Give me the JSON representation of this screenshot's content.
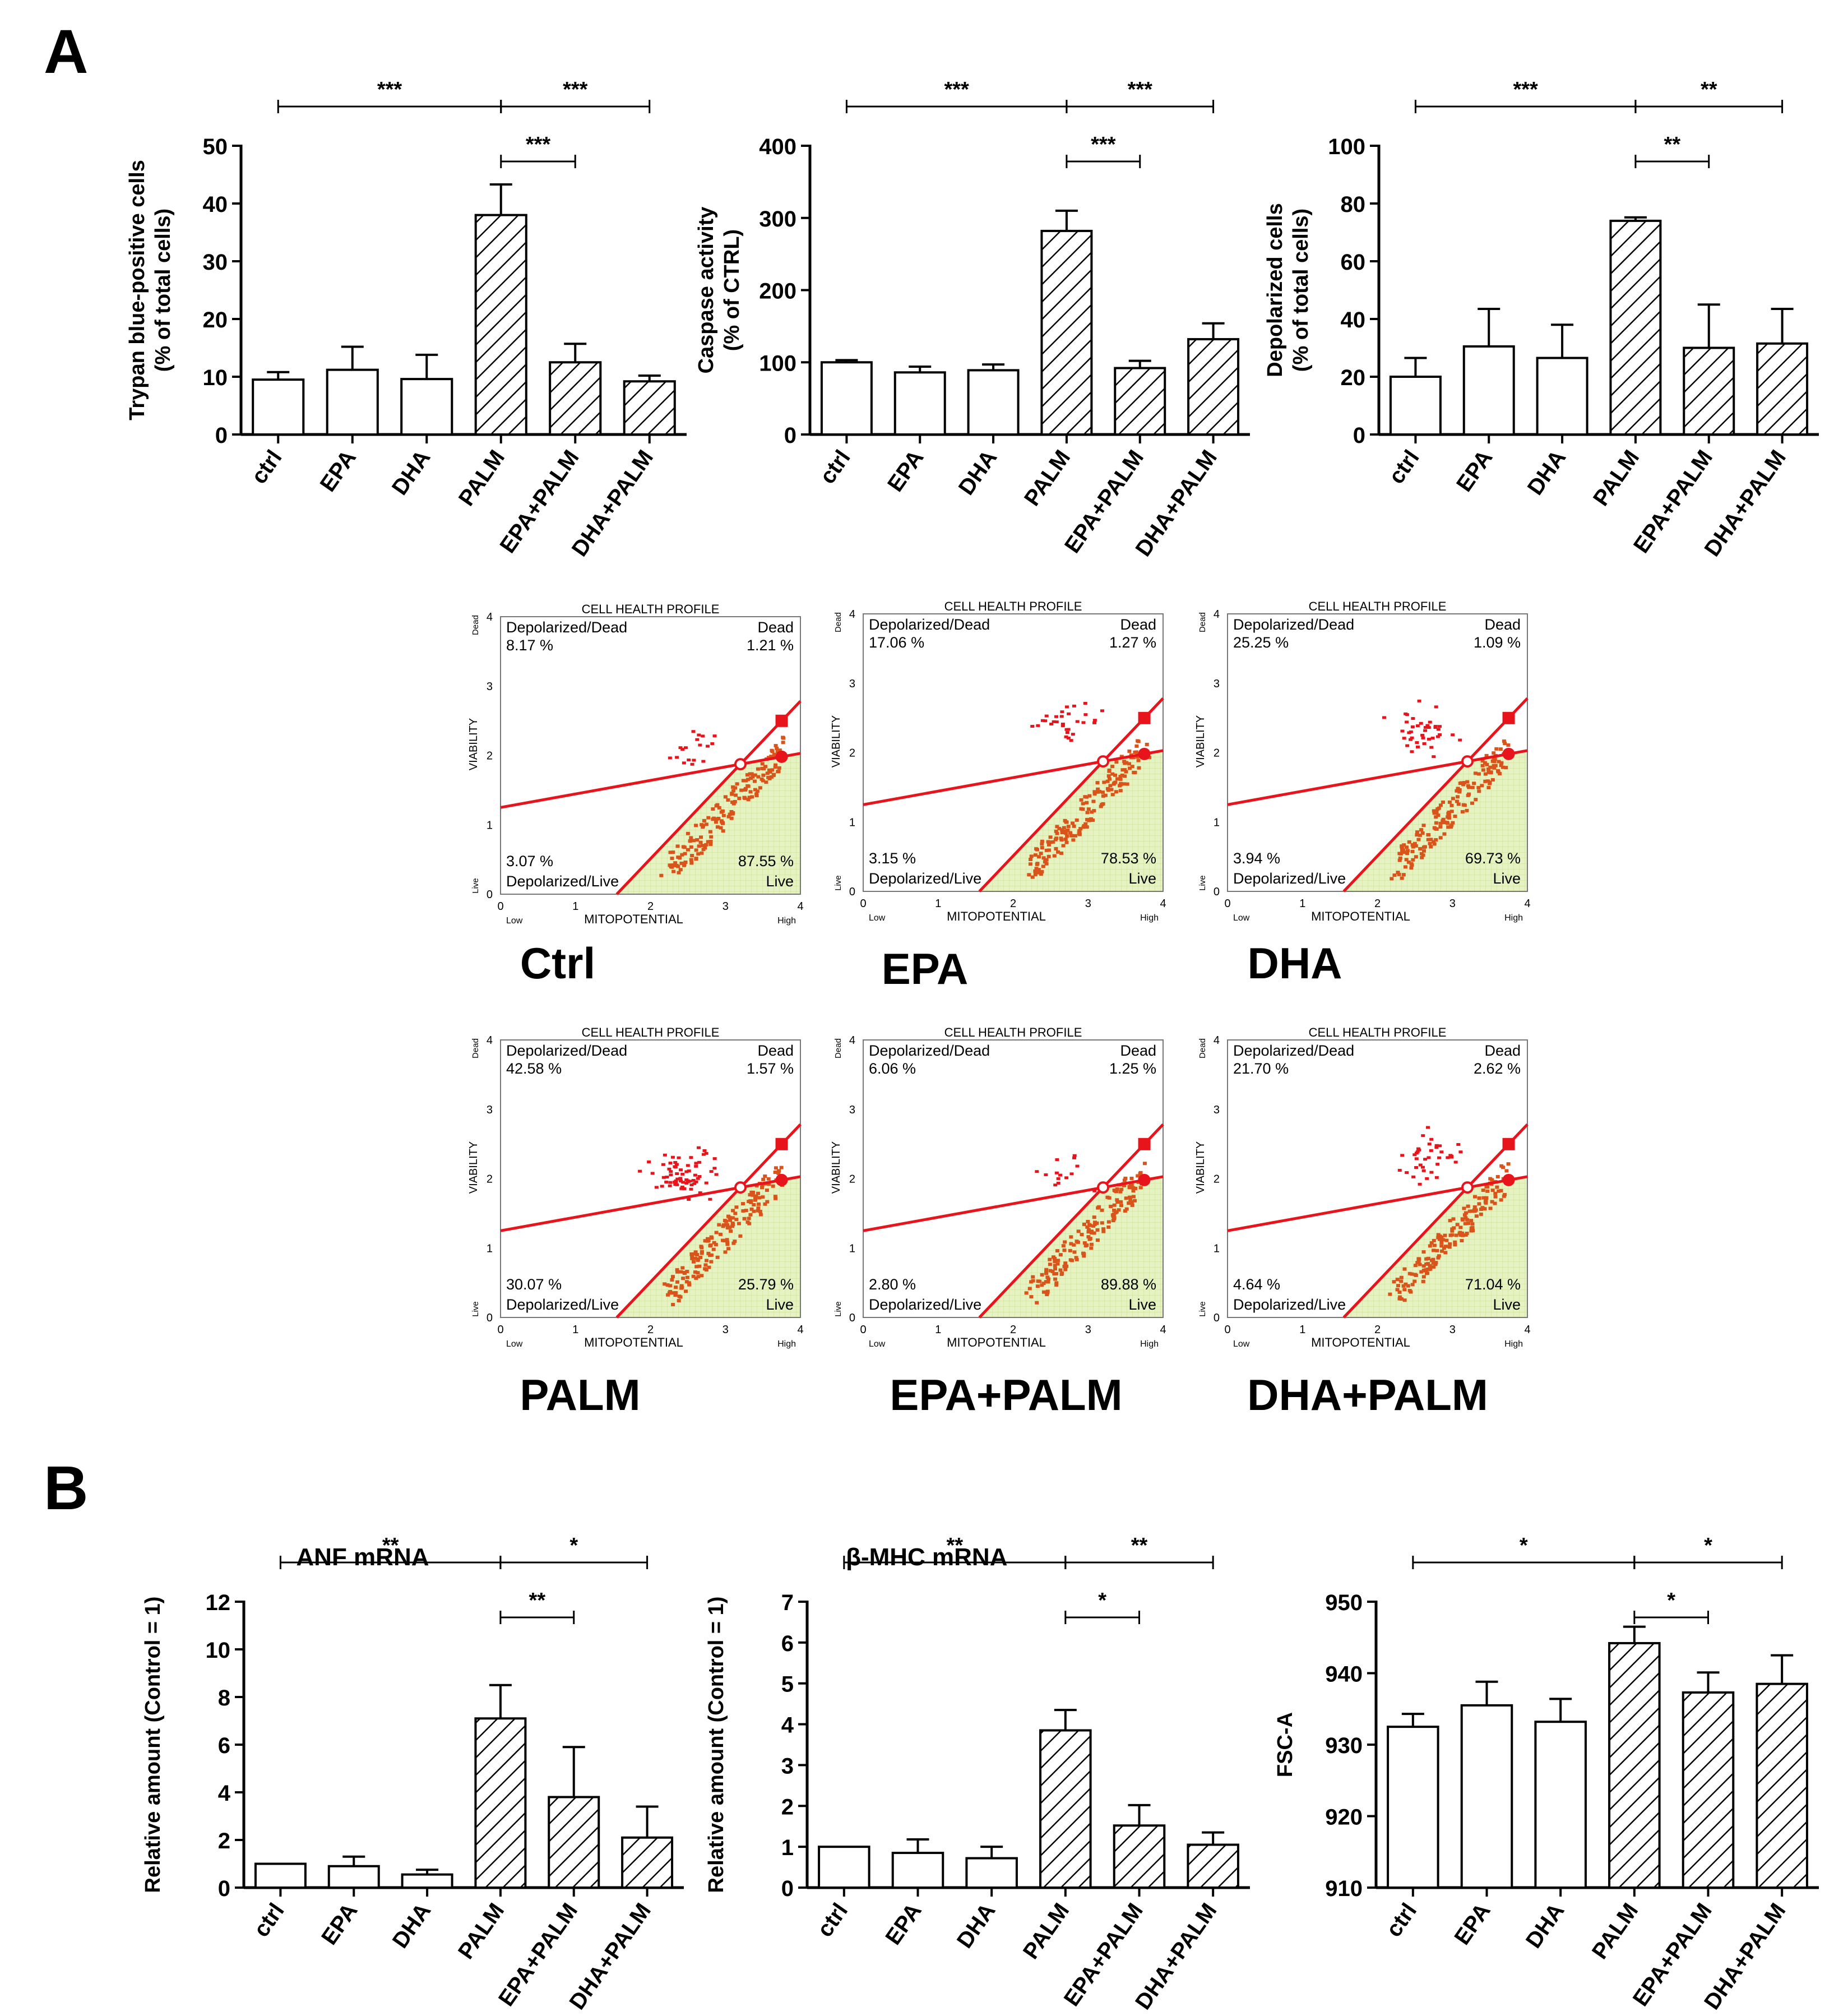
{
  "panel_a_label": "A",
  "panel_b_label": "B",
  "categories": [
    "ctrl",
    "EPA",
    "DHA",
    "PALM",
    "EPA+PALM",
    "DHA+PALM"
  ],
  "chart_data": [
    {
      "type": "bar",
      "title": "",
      "ylabel_lines": [
        "Trypan blue-positive cells",
        "(% of total cells)"
      ],
      "ylim": [
        0,
        50
      ],
      "yticks": [
        0,
        10,
        20,
        30,
        40,
        50
      ],
      "values": [
        9.5,
        11.2,
        9.6,
        38.0,
        12.5,
        9.2
      ],
      "errors": [
        1.3,
        4.0,
        4.2,
        5.3,
        3.2,
        1.0
      ],
      "hatch": [
        false,
        false,
        false,
        true,
        true,
        true
      ],
      "significance": [
        {
          "from": 0,
          "to": 3,
          "label": "***",
          "level": 0
        },
        {
          "from": 3,
          "to": 5,
          "label": "***",
          "level": 0
        },
        {
          "from": 3,
          "to": 4,
          "label": "***",
          "level": 1
        }
      ]
    },
    {
      "type": "bar",
      "title": "",
      "ylabel_lines": [
        "Caspase activity",
        "(% of CTRL)"
      ],
      "ylim": [
        0,
        400
      ],
      "yticks": [
        0,
        100,
        200,
        300,
        400
      ],
      "values": [
        100,
        86,
        89,
        282,
        92,
        132
      ],
      "errors": [
        3,
        8,
        8,
        28,
        10,
        22
      ],
      "hatch": [
        false,
        false,
        false,
        true,
        true,
        true
      ],
      "significance": [
        {
          "from": 0,
          "to": 3,
          "label": "***",
          "level": 0
        },
        {
          "from": 3,
          "to": 5,
          "label": "***",
          "level": 0
        },
        {
          "from": 3,
          "to": 4,
          "label": "***",
          "level": 1
        }
      ]
    },
    {
      "type": "bar",
      "title": "",
      "ylabel_lines": [
        "Depolarized cells",
        "(% of total cells)"
      ],
      "ylim": [
        0,
        100
      ],
      "yticks": [
        0,
        20,
        40,
        60,
        80,
        100
      ],
      "values": [
        20,
        30.5,
        26.5,
        74,
        30,
        31.5
      ],
      "errors": [
        6.5,
        13,
        11.5,
        1.2,
        15,
        12
      ],
      "hatch": [
        false,
        false,
        false,
        true,
        true,
        true
      ],
      "significance": [
        {
          "from": 0,
          "to": 3,
          "label": "***",
          "level": 0
        },
        {
          "from": 3,
          "to": 5,
          "label": "**",
          "level": 0
        },
        {
          "from": 3,
          "to": 4,
          "label": "**",
          "level": 1
        }
      ]
    },
    {
      "type": "bar",
      "title": "ANF  mRNA",
      "ylabel_lines": [
        "Relative amount (Control = 1)"
      ],
      "ylim": [
        0,
        12
      ],
      "yticks": [
        0,
        2,
        4,
        6,
        8,
        10,
        12
      ],
      "values": [
        1.0,
        0.9,
        0.55,
        7.1,
        3.8,
        2.1
      ],
      "errors": [
        0,
        0.4,
        0.2,
        1.4,
        2.1,
        1.3
      ],
      "hatch": [
        false,
        false,
        false,
        true,
        true,
        true
      ],
      "significance": [
        {
          "from": 0,
          "to": 3,
          "label": "**",
          "level": 0
        },
        {
          "from": 3,
          "to": 5,
          "label": "*",
          "level": 0
        },
        {
          "from": 3,
          "to": 4,
          "label": "**",
          "level": 1
        }
      ]
    },
    {
      "type": "bar",
      "title": "β-MHC  mRNA",
      "ylabel_lines": [
        "Relative amount (Control = 1)"
      ],
      "ylim": [
        0,
        7
      ],
      "yticks": [
        0,
        1,
        2,
        3,
        4,
        5,
        6,
        7
      ],
      "values": [
        1.0,
        0.85,
        0.72,
        3.85,
        1.52,
        1.05
      ],
      "errors": [
        0,
        0.33,
        0.28,
        0.5,
        0.5,
        0.3
      ],
      "hatch": [
        false,
        false,
        false,
        true,
        true,
        true
      ],
      "significance": [
        {
          "from": 0,
          "to": 3,
          "label": "**",
          "level": 0
        },
        {
          "from": 3,
          "to": 5,
          "label": "**",
          "level": 0
        },
        {
          "from": 3,
          "to": 4,
          "label": "*",
          "level": 1
        }
      ]
    },
    {
      "type": "bar",
      "title": "",
      "ylabel_lines": [
        "FSC-A"
      ],
      "ylim": [
        910,
        950
      ],
      "yticks": [
        910,
        920,
        930,
        940,
        950
      ],
      "values": [
        932.5,
        935.5,
        933.2,
        944.2,
        937.3,
        938.5
      ],
      "errors": [
        1.8,
        3.3,
        3.2,
        2.3,
        2.8,
        4.0
      ],
      "hatch": [
        false,
        false,
        false,
        true,
        true,
        true
      ],
      "significance": [
        {
          "from": 0,
          "to": 3,
          "label": "*",
          "level": 0
        },
        {
          "from": 3,
          "to": 5,
          "label": "*",
          "level": 0
        },
        {
          "from": 3,
          "to": 4,
          "label": "*",
          "level": 1
        }
      ]
    }
  ],
  "scatter_common": {
    "title": "CELL HEALTH PROFILE",
    "xlabel": "MITOPOTENTIAL",
    "ylabel": "VIABILITY",
    "x_low": "Low",
    "x_high": "High",
    "y_dead": "Dead",
    "y_live": "Live",
    "xticks": [
      "0",
      "1",
      "2",
      "3",
      "4"
    ],
    "yticks": [
      "0",
      "1",
      "2",
      "3",
      "4"
    ],
    "quad_tl": "Depolarized/Dead",
    "quad_tr": "Dead",
    "quad_bl": "Depolarized/Live",
    "quad_br": "Live"
  },
  "scatter_panels": [
    {
      "label": "Ctrl",
      "tl": "8.17 %",
      "tr": "1.21 %",
      "bl": "3.07 %",
      "br": "87.55 %"
    },
    {
      "label": "EPA",
      "tl": "17.06 %",
      "tr": "1.27 %",
      "bl": "3.15 %",
      "br": "78.53 %"
    },
    {
      "label": "DHA",
      "tl": "25.25 %",
      "tr": "1.09 %",
      "bl": "3.94 %",
      "br": "69.73 %"
    },
    {
      "label": "PALM",
      "tl": "42.58 %",
      "tr": "1.57 %",
      "bl": "30.07 %",
      "br": "25.79 %"
    },
    {
      "label": "EPA+PALM",
      "tl": "6.06 %",
      "tr": "1.25 %",
      "bl": "2.80 %",
      "br": "89.88 %"
    },
    {
      "label": "DHA+PALM",
      "tl": "21.70 %",
      "tr": "2.62 %",
      "bl": "4.64 %",
      "br": "71.04 %"
    }
  ],
  "colors": {
    "gate_red": "#e8141c",
    "live_fill": "#e6f1c4",
    "dot_orange": "#d9541a",
    "ink": "#000000"
  }
}
